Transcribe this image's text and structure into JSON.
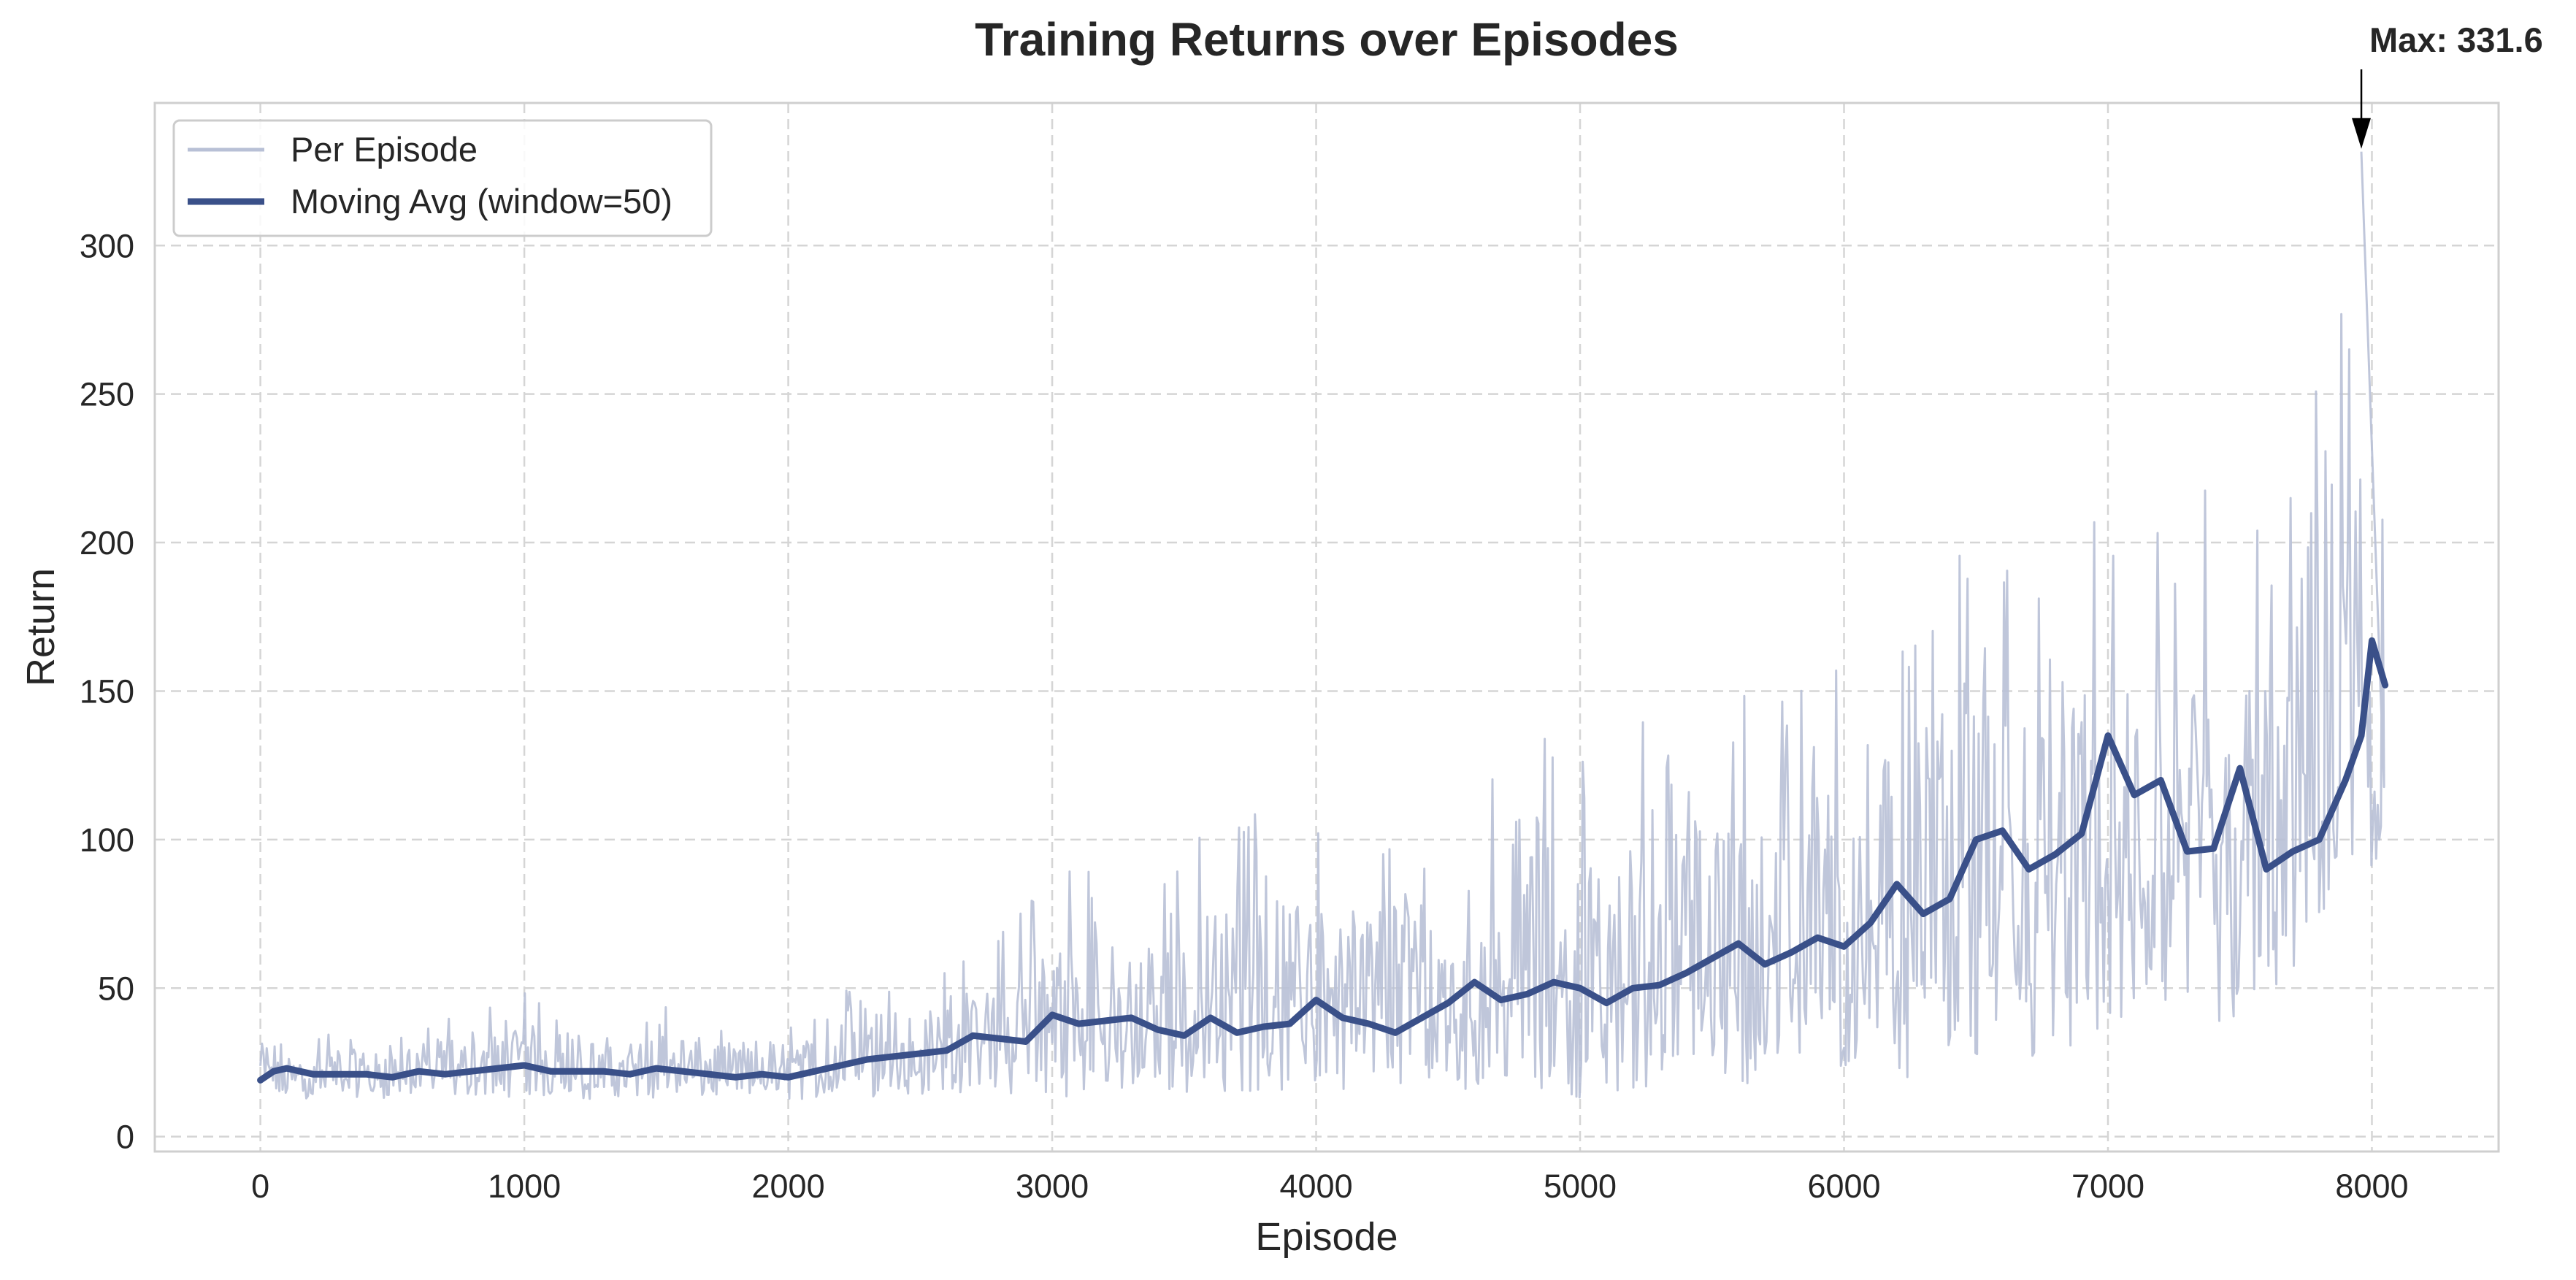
{
  "chart_data": {
    "type": "line",
    "title": "Training Returns over Episodes",
    "xlabel": "Episode",
    "ylabel": "Return",
    "xlim": [
      -400,
      8480
    ],
    "ylim": [
      -5,
      348
    ],
    "xticks": [
      0,
      1000,
      2000,
      3000,
      4000,
      5000,
      6000,
      7000,
      8000
    ],
    "yticks": [
      0,
      50,
      100,
      150,
      200,
      250,
      300
    ],
    "grid": true,
    "legend_position": "top-left",
    "series": [
      {
        "name": "Per Episode",
        "color": "#b8c0d6",
        "x": [
          0,
          100,
          200,
          300,
          400,
          500,
          600,
          700,
          800,
          900,
          1000,
          1100,
          1200,
          1300,
          1400,
          1500,
          1600,
          1700,
          1800,
          1900,
          2000,
          2100,
          2200,
          2300,
          2400,
          2500,
          2600,
          2700,
          2800,
          2900,
          3000,
          3100,
          3200,
          3300,
          3400,
          3500,
          3600,
          3700,
          3800,
          3900,
          4000,
          4100,
          4200,
          4300,
          4400,
          4500,
          4600,
          4700,
          4800,
          4900,
          5000,
          5100,
          5200,
          5300,
          5400,
          5500,
          5600,
          5700,
          5800,
          5900,
          6000,
          6100,
          6200,
          6300,
          6400,
          6500,
          6600,
          6700,
          6800,
          6900,
          7000,
          7100,
          7200,
          7300,
          7400,
          7500,
          7600,
          7700,
          7800,
          7900,
          7960,
          8000,
          8050
        ],
        "high": [
          40,
          43,
          35,
          38,
          36,
          45,
          40,
          43,
          40,
          45,
          52,
          42,
          40,
          44,
          40,
          46,
          45,
          42,
          40,
          43,
          45,
          44,
          50,
          50,
          52,
          56,
          58,
          62,
          70,
          85,
          98,
          90,
          92,
          85,
          95,
          100,
          105,
          110,
          110,
          112,
          150,
          110,
          112,
          118,
          120,
          115,
          125,
          130,
          165,
          135,
          130,
          135,
          140,
          140,
          150,
          160,
          150,
          165,
          160,
          170,
          175,
          205,
          185,
          195,
          190,
          210,
          200,
          205,
          215,
          225,
          210,
          205,
          220,
          215,
          230,
          210,
          215,
          220,
          330,
          290,
          331.6,
          290,
          230
        ],
        "low": [
          13,
          12,
          13,
          14,
          13,
          13,
          14,
          13,
          14,
          13,
          14,
          13,
          12,
          13,
          14,
          13,
          12,
          13,
          14,
          13,
          12,
          13,
          14,
          13,
          14,
          14,
          14,
          14,
          14,
          14,
          13,
          14,
          14,
          14,
          14,
          14,
          14,
          15,
          15,
          15,
          15,
          16,
          16,
          16,
          16,
          16,
          16,
          16,
          15,
          16,
          13,
          14,
          15,
          16,
          17,
          18,
          17,
          18,
          17,
          19,
          20,
          22,
          19,
          20,
          20,
          22,
          23,
          25,
          30,
          25,
          35,
          35,
          40,
          38,
          30,
          38,
          45,
          48,
          55,
          60,
          65,
          70,
          80
        ]
      },
      {
        "name": "Moving Avg (window=50)",
        "color": "#3a5089",
        "x": [
          0,
          50,
          100,
          200,
          300,
          400,
          500,
          600,
          700,
          800,
          900,
          1000,
          1100,
          1200,
          1300,
          1400,
          1500,
          1600,
          1700,
          1800,
          1900,
          2000,
          2100,
          2200,
          2300,
          2400,
          2500,
          2600,
          2700,
          2800,
          2900,
          3000,
          3100,
          3200,
          3300,
          3400,
          3500,
          3600,
          3700,
          3800,
          3900,
          4000,
          4100,
          4200,
          4300,
          4400,
          4500,
          4600,
          4700,
          4800,
          4900,
          5000,
          5100,
          5200,
          5300,
          5400,
          5500,
          5600,
          5700,
          5800,
          5900,
          6000,
          6100,
          6200,
          6300,
          6400,
          6500,
          6600,
          6700,
          6800,
          6900,
          7000,
          7100,
          7200,
          7300,
          7400,
          7500,
          7600,
          7700,
          7800,
          7900,
          7960,
          8000,
          8050
        ],
        "y": [
          19,
          22,
          23,
          21,
          21,
          21,
          20,
          22,
          21,
          22,
          23,
          24,
          22,
          22,
          22,
          21,
          23,
          22,
          21,
          20,
          21,
          20,
          22,
          24,
          26,
          27,
          28,
          29,
          34,
          33,
          32,
          41,
          38,
          39,
          40,
          36,
          34,
          40,
          35,
          37,
          38,
          46,
          40,
          38,
          35,
          40,
          45,
          52,
          46,
          48,
          52,
          50,
          45,
          50,
          51,
          55,
          60,
          65,
          58,
          62,
          67,
          64,
          72,
          85,
          75,
          80,
          100,
          103,
          90,
          95,
          102,
          135,
          115,
          120,
          96,
          97,
          124,
          90,
          96,
          100,
          120,
          135,
          167,
          152
        ]
      }
    ],
    "annotation": {
      "text": "Max: 331.6",
      "x": 7960,
      "y": 331.6
    }
  }
}
